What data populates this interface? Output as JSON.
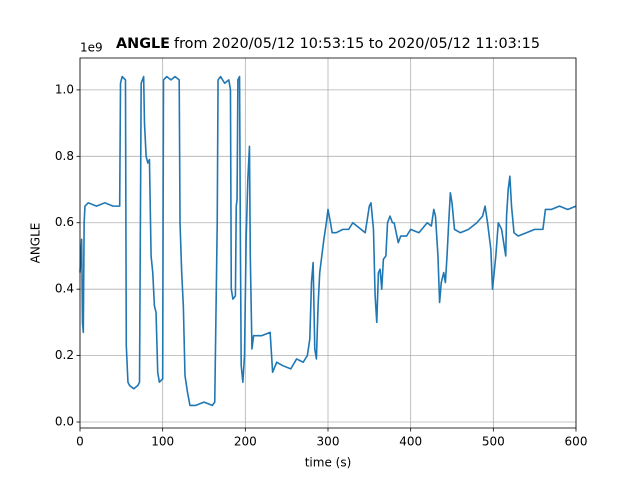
{
  "chart_data": {
    "type": "line",
    "title_bold": "ANGLE",
    "title": "from 2020/05/12 10:53:15 to 2020/05/12 11:03:15",
    "x_label": "time (s)",
    "y_label": "ANGLE",
    "offset_text": "1e9",
    "x": [
      0,
      2,
      3,
      4,
      5,
      6,
      10,
      20,
      30,
      40,
      48,
      49,
      51,
      55,
      56,
      58,
      60,
      65,
      70,
      72,
      74,
      77,
      78,
      80,
      82,
      84,
      86,
      88,
      90,
      92,
      94,
      96,
      100,
      101,
      105,
      110,
      115,
      120,
      121,
      123,
      125,
      127,
      130,
      133,
      140,
      150,
      160,
      163,
      166,
      167,
      170,
      175,
      180,
      182,
      183,
      185,
      188,
      189,
      190,
      191,
      193,
      194,
      195,
      197,
      199,
      201,
      203,
      205,
      206,
      208,
      210,
      220,
      230,
      233,
      238,
      245,
      255,
      262,
      270,
      275,
      278,
      280,
      282,
      284,
      286,
      288,
      290,
      295,
      298,
      300,
      303,
      305,
      310,
      318,
      325,
      330,
      340,
      345,
      350,
      352,
      355,
      357,
      359,
      361,
      363,
      365,
      367,
      370,
      372,
      375,
      378,
      380,
      385,
      388,
      395,
      400,
      410,
      420,
      425,
      428,
      430,
      433,
      435,
      437,
      440,
      442,
      444,
      446,
      448,
      450,
      453,
      460,
      470,
      480,
      487,
      490,
      493,
      497,
      499,
      501,
      503,
      506,
      510,
      515,
      516,
      518,
      520,
      522,
      525,
      530,
      540,
      550,
      555,
      560,
      563,
      570,
      580,
      590,
      600
    ],
    "values": [
      0.45,
      0.55,
      0.3,
      0.27,
      0.6,
      0.65,
      0.66,
      0.65,
      0.66,
      0.65,
      0.65,
      1.02,
      1.04,
      1.03,
      0.23,
      0.12,
      0.11,
      0.1,
      0.11,
      0.12,
      1.02,
      1.04,
      0.9,
      0.8,
      0.78,
      0.79,
      0.5,
      0.45,
      0.35,
      0.33,
      0.15,
      0.12,
      0.13,
      1.03,
      1.04,
      1.03,
      1.04,
      1.03,
      0.6,
      0.45,
      0.35,
      0.14,
      0.09,
      0.05,
      0.05,
      0.06,
      0.05,
      0.06,
      0.6,
      1.03,
      1.04,
      1.02,
      1.03,
      1.0,
      0.4,
      0.37,
      0.38,
      0.65,
      0.67,
      1.03,
      1.04,
      0.55,
      0.17,
      0.12,
      0.2,
      0.55,
      0.73,
      0.83,
      0.5,
      0.22,
      0.26,
      0.26,
      0.27,
      0.15,
      0.18,
      0.17,
      0.16,
      0.19,
      0.18,
      0.2,
      0.25,
      0.42,
      0.48,
      0.22,
      0.19,
      0.35,
      0.45,
      0.55,
      0.6,
      0.64,
      0.6,
      0.57,
      0.57,
      0.58,
      0.58,
      0.6,
      0.58,
      0.57,
      0.65,
      0.66,
      0.58,
      0.38,
      0.3,
      0.45,
      0.46,
      0.4,
      0.49,
      0.5,
      0.6,
      0.62,
      0.6,
      0.6,
      0.54,
      0.56,
      0.56,
      0.58,
      0.57,
      0.6,
      0.59,
      0.64,
      0.62,
      0.5,
      0.36,
      0.42,
      0.45,
      0.42,
      0.5,
      0.6,
      0.69,
      0.66,
      0.58,
      0.57,
      0.58,
      0.6,
      0.62,
      0.65,
      0.6,
      0.52,
      0.4,
      0.45,
      0.5,
      0.6,
      0.58,
      0.5,
      0.62,
      0.7,
      0.74,
      0.65,
      0.57,
      0.56,
      0.57,
      0.58,
      0.58,
      0.58,
      0.64,
      0.64,
      0.65,
      0.64,
      0.65
    ],
    "color": "#1f77b4",
    "xlim": [
      0,
      600
    ],
    "ylim": [
      -0.018,
      1.096
    ],
    "xticks": [
      0,
      100,
      200,
      300,
      400,
      500,
      600
    ],
    "yticks": [
      {
        "value": 0,
        "label": "0.0"
      },
      {
        "value": 0.2,
        "label": "0.2"
      },
      {
        "value": 0.4,
        "label": "0.4"
      },
      {
        "value": 0.6,
        "label": "0.6"
      },
      {
        "value": 0.8,
        "label": "0.8"
      },
      {
        "value": 1,
        "label": "1.0"
      }
    ],
    "grid": true
  }
}
